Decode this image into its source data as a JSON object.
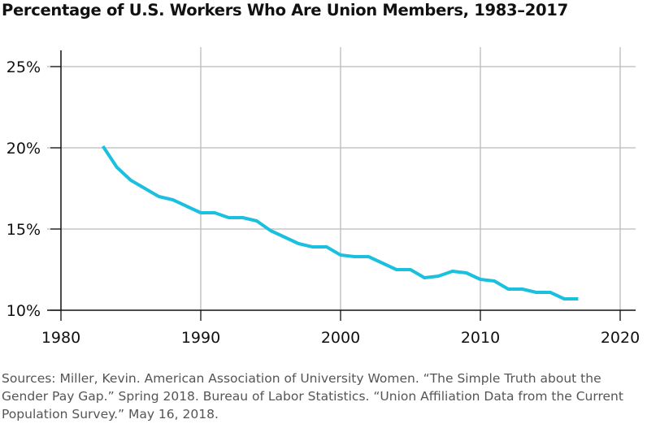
{
  "chart_data": {
    "type": "line",
    "title": "Percentage of U.S. Workers Who Are Union Members, 1983–2017",
    "xlabel": "",
    "ylabel": "",
    "xlim": [
      1980,
      2020
    ],
    "ylim": [
      10,
      25
    ],
    "xticks": [
      1980,
      1990,
      2000,
      2010,
      2020
    ],
    "yticks": [
      {
        "v": 10,
        "label": "10%"
      },
      {
        "v": 15,
        "label": "15%"
      },
      {
        "v": 20,
        "label": "20%"
      },
      {
        "v": 25,
        "label": "25%"
      }
    ],
    "grid": true,
    "color": "#1ac0dd",
    "x": [
      1983,
      1984,
      1985,
      1986,
      1987,
      1988,
      1989,
      1990,
      1991,
      1992,
      1993,
      1994,
      1995,
      1996,
      1997,
      1998,
      1999,
      2000,
      2001,
      2002,
      2003,
      2004,
      2005,
      2006,
      2007,
      2008,
      2009,
      2010,
      2011,
      2012,
      2013,
      2014,
      2015,
      2016,
      2017
    ],
    "y": [
      20.1,
      18.8,
      18.0,
      17.5,
      17.0,
      16.8,
      16.4,
      16.0,
      16.0,
      15.7,
      15.7,
      15.5,
      14.9,
      14.5,
      14.1,
      13.9,
      13.9,
      13.4,
      13.3,
      13.3,
      12.9,
      12.5,
      12.5,
      12.0,
      12.1,
      12.4,
      12.3,
      11.9,
      11.8,
      11.3,
      11.3,
      11.1,
      11.1,
      10.7,
      10.7
    ]
  },
  "source": "Sources: Miller, Kevin. American Association of University Women. “The Simple Truth about the Gender Pay Gap.” Spring 2018. Bureau of Labor Statistics. “Union Affiliation Data from the Current Population Survey.” May 16, 2018."
}
